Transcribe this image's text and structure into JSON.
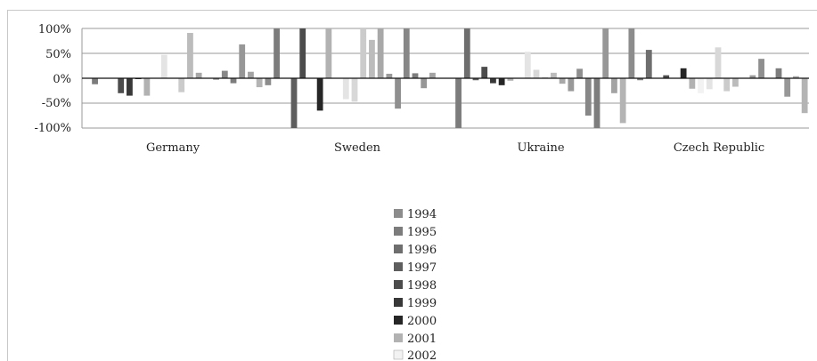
{
  "chart_data": {
    "type": "bar",
    "categories": [
      "Germany",
      "Sweden",
      "Ukraine",
      "Czech Republic"
    ],
    "y_ticks": [
      "100%",
      "50%",
      "0%",
      "-50%",
      "-100%"
    ],
    "ylim": [
      -100,
      100
    ],
    "grid": true,
    "legend_position": "bottom",
    "bars_per_category": 21,
    "series_colors": [
      "#8c8c8c",
      "#7c7c7c",
      "#6e6e6e",
      "#5e5e5e",
      "#4c4c4c",
      "#383838",
      "#262626",
      "#b2b2b2",
      "#f2f2f2",
      "#e4e4e4",
      "#d8d8d8",
      "#cbcbcb",
      "#bcbcbc",
      "#a8a8a8",
      "#999999",
      "#8f8f8f",
      "#878787",
      "#7d7d7d",
      "#979797",
      "#a3a3a3",
      "#b4b4b4"
    ],
    "legend_entries": [
      {
        "label": "1994",
        "color": "#8c8c8c"
      },
      {
        "label": "1995",
        "color": "#7c7c7c"
      },
      {
        "label": "1996",
        "color": "#6e6e6e"
      },
      {
        "label": "1997",
        "color": "#5e5e5e"
      },
      {
        "label": "1998",
        "color": "#4c4c4c"
      },
      {
        "label": "1999",
        "color": "#383838"
      },
      {
        "label": "2000",
        "color": "#262626"
      },
      {
        "label": "2001",
        "color": "#b2b2b2"
      },
      {
        "label": "2002",
        "color": "#f2f2f2"
      }
    ],
    "values": {
      "Germany": [
        0,
        -12,
        0,
        0,
        -30,
        -35,
        -1,
        -35,
        0,
        47,
        0,
        -28,
        91,
        11,
        0,
        -3,
        15,
        -10,
        68,
        13,
        -18
      ],
      "Sweden": [
        -14,
        100,
        0,
        -100,
        100,
        0,
        -65,
        100,
        0,
        -42,
        -47,
        100,
        77,
        100,
        9,
        -61,
        100,
        10,
        -20,
        11,
        0
      ],
      "Ukraine": [
        0,
        -100,
        100,
        -4,
        23,
        -10,
        -14,
        -5,
        0,
        53,
        17,
        2,
        11,
        -11,
        -26,
        19,
        -75,
        -100,
        100,
        -30,
        -90
      ],
      "Czech Republic": [
        100,
        -4,
        57,
        0,
        6,
        0,
        20,
        -21,
        -30,
        -22,
        62,
        -26,
        -17,
        0,
        6,
        39,
        0,
        20,
        -37,
        4,
        -70
      ]
    }
  }
}
